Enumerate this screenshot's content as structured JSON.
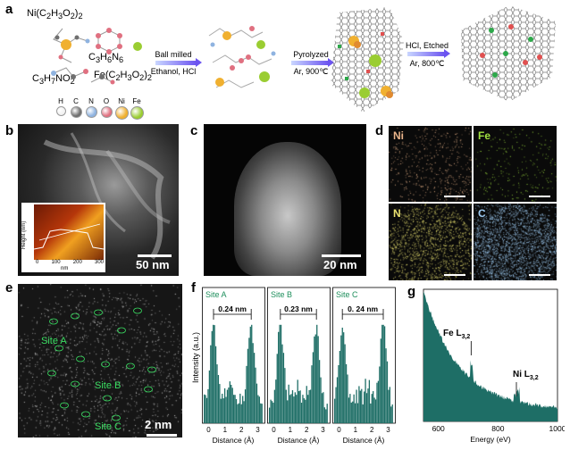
{
  "panel_labels": {
    "a": "a",
    "b": "b",
    "c": "c",
    "d": "d",
    "e": "e",
    "f": "f",
    "g": "g"
  },
  "scheme": {
    "reagents": {
      "ni_acetate": "Ni(C2H3O2)2",
      "melamine": "C3H6N6",
      "fe_acetate": "Fe(C2H3O2)2",
      "glycine": "C3H7NO2"
    },
    "legend": [
      "H",
      "C",
      "N",
      "O",
      "Ni",
      "Fe"
    ],
    "legend_colors": [
      "#f2f2f2",
      "#6f6f6f",
      "#8fb3e0",
      "#e07080",
      "#f0b030",
      "#9acd32"
    ],
    "step1_top": "Ball milled",
    "step1_bottom": "Ethanol, HCl",
    "step2_top": "Pyrolyzed",
    "step2_bottom": "Ar, 900℃",
    "step3_top": "HCl, Etched",
    "step3_bottom": "Ar, 800℃"
  },
  "panel_b": {
    "scalebar": "50 nm",
    "inset_ylabel": "Height (nm)",
    "inset_xlabel": "nm",
    "inset_yticks": [
      "3",
      "2",
      "1",
      "0"
    ],
    "inset_xticks": [
      "0",
      "100",
      "200",
      "300"
    ]
  },
  "panel_c": {
    "scalebar": "20 nm"
  },
  "panel_d": {
    "maps": [
      {
        "label": "Ni",
        "color": "#e9b48a"
      },
      {
        "label": "Fe",
        "color": "#a0e040"
      },
      {
        "label": "N",
        "color": "#e8e070"
      },
      {
        "label": "C",
        "color": "#9cc8ee"
      }
    ]
  },
  "panel_e": {
    "scalebar": "2 nm",
    "sites": [
      "Site A",
      "Site B",
      "Site C"
    ]
  },
  "panel_f": {
    "ylabel": "Intensity (a.u.)",
    "xlabel": "Distance (Å)",
    "bar_color": "#1e6e66",
    "subpanels": [
      {
        "title": "Site A",
        "distance_label": "0.24 nm",
        "xticks": [
          "0",
          "1",
          "2",
          "3"
        ]
      },
      {
        "title": "Site B",
        "distance_label": "0.23 nm",
        "xticks": [
          "0",
          "1",
          "2",
          "3"
        ]
      },
      {
        "title": "Site C",
        "distance_label": "0. 24 nm",
        "xticks": [
          "0",
          "1",
          "2",
          "3"
        ]
      }
    ]
  },
  "panel_g": {
    "xlabel": "Energy (eV)",
    "xticks": [
      "600",
      "800",
      "1000"
    ],
    "annotations": [
      {
        "element": "Fe",
        "edge": "L",
        "sub": "3,2"
      },
      {
        "element": "Ni",
        "edge": "L",
        "sub": "3,2"
      }
    ],
    "fill_color": "#1e6e66"
  },
  "chart_data": [
    {
      "type": "bar",
      "title": "Site A",
      "xlabel": "Distance (Å)",
      "ylabel": "Intensity (a.u.)",
      "xlim": [
        0,
        3.6
      ],
      "peaks_x": [
        0.6,
        2.9
      ],
      "annotation": "0.24 nm"
    },
    {
      "type": "bar",
      "title": "Site B",
      "xlabel": "Distance (Å)",
      "ylabel": "Intensity (a.u.)",
      "xlim": [
        0,
        3.6
      ],
      "peaks_x": [
        0.7,
        2.9
      ],
      "annotation": "0.23 nm"
    },
    {
      "type": "bar",
      "title": "Site C",
      "xlabel": "Distance (Å)",
      "ylabel": "Intensity (a.u.)",
      "xlim": [
        0,
        3.6
      ],
      "peaks_x": [
        0.5,
        3.0
      ],
      "annotation": "0. 24 nm"
    },
    {
      "type": "area",
      "xlabel": "Energy (eV)",
      "xlim": [
        550,
        1000
      ],
      "annotations": [
        {
          "label": "Fe L3,2",
          "x": 710
        },
        {
          "label": "Ni L3,2",
          "x": 860
        }
      ]
    }
  ]
}
